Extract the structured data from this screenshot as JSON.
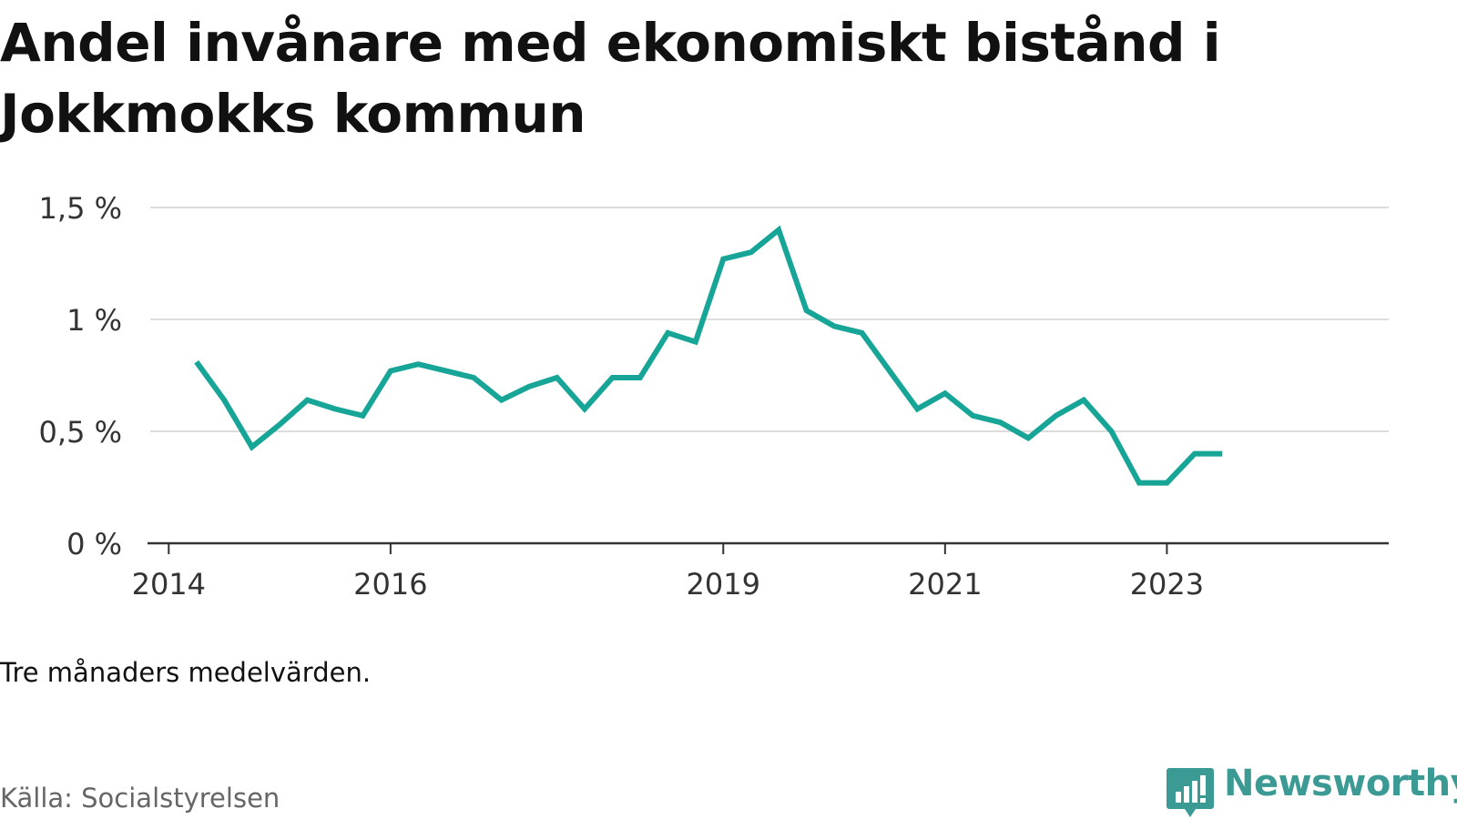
{
  "title": "Andel invånare med ekonomiskt bistånd i Jokkmokks kommun",
  "note": "Tre månaders medelvärden.",
  "source": "Källa: Socialstyrelsen",
  "brand": {
    "name": "Newsworthy",
    "icon": "newsworthy-logo-icon"
  },
  "colors": {
    "line": "#16a597",
    "grid": "#dddddd",
    "axis": "#333333",
    "brand": "#3b9a94"
  },
  "chart_data": {
    "type": "line",
    "title": "Andel invånare med ekonomiskt bistånd i Jokkmokks kommun",
    "xlabel": "",
    "ylabel": "",
    "ylim": [
      0,
      1.5
    ],
    "yticks": [
      {
        "value": 0,
        "label": "0 %"
      },
      {
        "value": 0.5,
        "label": "0,5 %"
      },
      {
        "value": 1,
        "label": "1 %"
      },
      {
        "value": 1.5,
        "label": "1,5 %"
      }
    ],
    "xticks": [
      {
        "value": "2014-01",
        "label": "2014"
      },
      {
        "value": "2016-01",
        "label": "2016"
      },
      {
        "value": "2019-01",
        "label": "2019"
      },
      {
        "value": "2021-01",
        "label": "2021"
      },
      {
        "value": "2023-01",
        "label": "2023"
      }
    ],
    "xlim": [
      "2013-11",
      "2025-01"
    ],
    "grid": true,
    "series": [
      {
        "points": [
          [
            "2014-04",
            0.81
          ],
          [
            "2014-07",
            0.64
          ],
          [
            "2014-10",
            0.43
          ],
          [
            "2015-01",
            0.53
          ],
          [
            "2015-04",
            0.64
          ],
          [
            "2015-07",
            0.6
          ],
          [
            "2015-10",
            0.57
          ],
          [
            "2016-01",
            0.77
          ],
          [
            "2016-04",
            0.8
          ],
          [
            "2016-07",
            0.77
          ],
          [
            "2016-10",
            0.74
          ],
          [
            "2017-01",
            0.64
          ],
          [
            "2017-04",
            0.7
          ],
          [
            "2017-07",
            0.74
          ],
          [
            "2017-10",
            0.6
          ],
          [
            "2018-01",
            0.74
          ],
          [
            "2018-04",
            0.74
          ],
          [
            "2018-07",
            0.94
          ],
          [
            "2018-10",
            0.9
          ],
          [
            "2019-01",
            1.27
          ],
          [
            "2019-04",
            1.3
          ],
          [
            "2019-07",
            1.4
          ],
          [
            "2019-10",
            1.04
          ],
          [
            "2020-01",
            0.97
          ],
          [
            "2020-04",
            0.94
          ],
          [
            "2020-07",
            0.77
          ],
          [
            "2020-10",
            0.6
          ],
          [
            "2021-01",
            0.67
          ],
          [
            "2021-04",
            0.57
          ],
          [
            "2021-07",
            0.54
          ],
          [
            "2021-10",
            0.47
          ],
          [
            "2022-01",
            0.57
          ],
          [
            "2022-04",
            0.64
          ],
          [
            "2022-07",
            0.5
          ],
          [
            "2022-10",
            0.27
          ],
          [
            "2023-01",
            0.27
          ],
          [
            "2023-04",
            0.4
          ],
          [
            "2023-07",
            0.4
          ]
        ]
      }
    ]
  }
}
